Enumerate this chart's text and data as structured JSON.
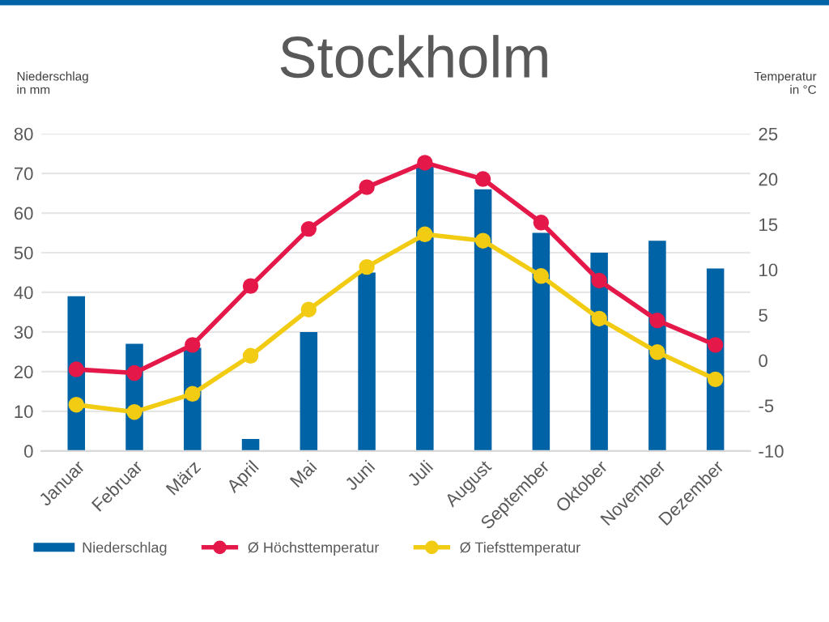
{
  "chart_data": {
    "type": "bar",
    "title": "Stockholm",
    "ylabel": "Niederschlag\nin mm",
    "y2label": "Temperatur\nin °C",
    "categories": [
      "Januar",
      "Februar",
      "März",
      "April",
      "Mai",
      "Juni",
      "Juli",
      "August",
      "September",
      "Oktober",
      "November",
      "Dezember"
    ],
    "series": [
      {
        "name": "Niederschlag",
        "color": "#0063a6",
        "values": [
          39,
          27,
          26,
          3,
          30,
          45,
          72,
          66,
          55,
          50,
          53,
          46
        ]
      },
      {
        "name": "Ø Höchsttemperatur",
        "type": "line",
        "axis": "y2",
        "color": "#e5184a",
        "marker": "circle",
        "values": [
          -1,
          -1.4,
          1.7,
          8.2,
          14.5,
          19.1,
          21.8,
          20,
          15.2,
          8.8,
          4.4,
          1.7
        ]
      },
      {
        "name": "Ø Tiefsttemperatur",
        "type": "line",
        "axis": "y2",
        "color": "#f2cb13",
        "marker": "circle",
        "values": [
          -4.9,
          -5.7,
          -3.7,
          0.5,
          5.6,
          10.3,
          13.9,
          13.2,
          9.3,
          4.6,
          0.9,
          -2.1
        ]
      }
    ],
    "ylim": [
      0,
      80
    ],
    "yticks": [
      0,
      10,
      20,
      30,
      40,
      50,
      60,
      70,
      80
    ],
    "y2lim": [
      -10,
      25
    ],
    "y2ticks": [
      -10,
      -5,
      0,
      5,
      10,
      15,
      20,
      25
    ],
    "grid": "y",
    "legend": "bottom"
  }
}
